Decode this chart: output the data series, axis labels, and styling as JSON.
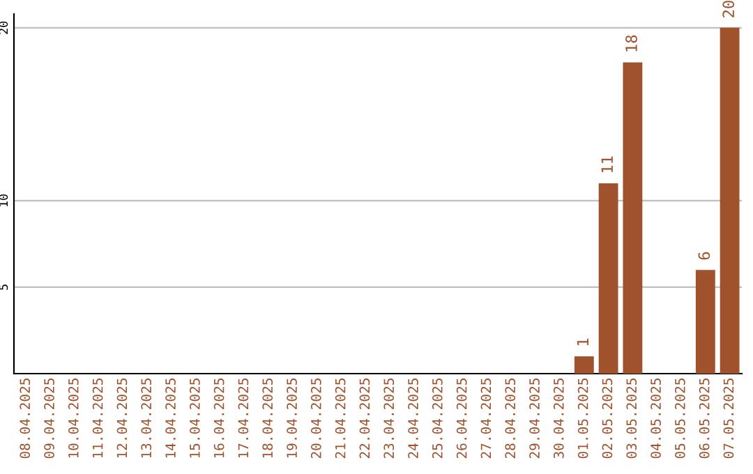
{
  "chart_data": {
    "type": "bar",
    "categories": [
      "08.04.2025",
      "09.04.2025",
      "10.04.2025",
      "11.04.2025",
      "12.04.2025",
      "13.04.2025",
      "14.04.2025",
      "15.04.2025",
      "16.04.2025",
      "17.04.2025",
      "18.04.2025",
      "19.04.2025",
      "20.04.2025",
      "21.04.2025",
      "22.04.2025",
      "23.04.2025",
      "24.04.2025",
      "25.04.2025",
      "26.04.2025",
      "27.04.2025",
      "28.04.2025",
      "29.04.2025",
      "30.04.2025",
      "01.05.2025",
      "02.05.2025",
      "03.05.2025",
      "04.05.2025",
      "05.05.2025",
      "06.05.2025",
      "07.05.2025"
    ],
    "values": [
      null,
      null,
      null,
      null,
      null,
      null,
      null,
      null,
      null,
      null,
      null,
      null,
      null,
      null,
      null,
      null,
      null,
      null,
      null,
      null,
      null,
      null,
      null,
      1,
      11,
      18,
      null,
      null,
      6,
      20
    ],
    "color": "#a0522d",
    "ylim": [
      0,
      20.8
    ],
    "yticks": [
      5,
      10,
      20
    ],
    "grid": "y",
    "data_labels": true
  }
}
